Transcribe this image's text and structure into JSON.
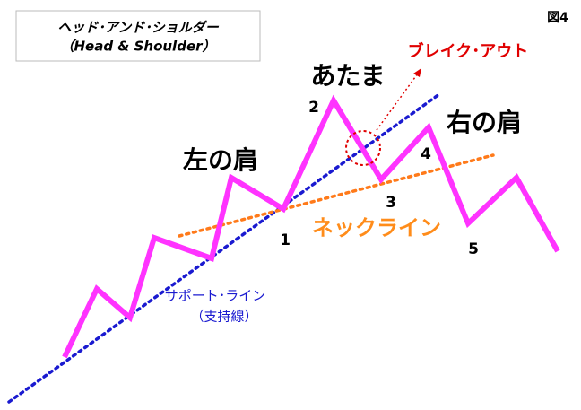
{
  "header": {
    "title": "ヘッド･アンド･ショルダー",
    "subtitle": "（Head & Shoulder）",
    "figure": "図4"
  },
  "labels": {
    "breakout": "ブレイク･アウト",
    "head": "あたま",
    "left_shoulder": "左の肩",
    "right_shoulder": "右の肩",
    "neckline": "ネックライン",
    "support_line": "サポート･ライン",
    "support_line_sub": "（支持線）"
  },
  "points": [
    "1",
    "2",
    "3",
    "4",
    "5"
  ]
}
